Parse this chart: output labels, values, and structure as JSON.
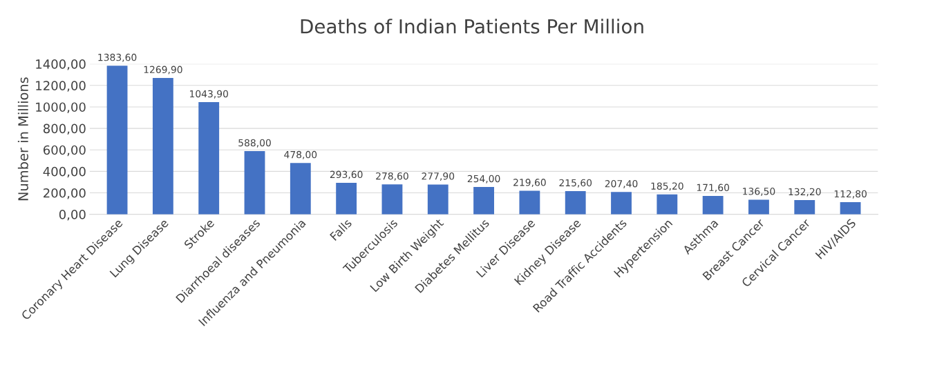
{
  "chart_data": {
    "type": "bar",
    "title": "Deaths of Indian Patients Per Million",
    "ylabel": "Number in Millions",
    "categories": [
      "Coronary Heart Disease",
      "Lung Disease",
      "Stroke",
      "Diarrhoeal diseases",
      "Influenza and Pneumonia",
      "Falls",
      "Tuberculosis",
      "Low Birth Weight",
      "Diabetes Mellitus",
      "Liver Disease",
      "Kidney Disease",
      "Road Traffic Accidents",
      "Hypertension",
      "Asthma",
      "Breast Cancer",
      "Cervical Cancer",
      "HIV/AIDS"
    ],
    "values": [
      1383.6,
      1269.9,
      1043.9,
      588.0,
      478.0,
      293.6,
      278.6,
      277.9,
      254.0,
      219.6,
      215.6,
      207.4,
      185.2,
      171.6,
      136.5,
      132.2,
      112.8
    ],
    "value_labels": [
      "1383,60",
      "1269,90",
      "1043,90",
      "588,00",
      "478,00",
      "293,60",
      "278,60",
      "277,90",
      "254,00",
      "219,60",
      "215,60",
      "207,40",
      "185,20",
      "171,60",
      "136,50",
      "132,20",
      "112,80"
    ],
    "color": "#4472c4",
    "ylim": [
      0,
      1400
    ],
    "yticks": [
      {
        "value": 0,
        "label": "0,00"
      },
      {
        "value": 200,
        "label": "200,00"
      },
      {
        "value": 400,
        "label": "400,00"
      },
      {
        "value": 600,
        "label": "600,00"
      },
      {
        "value": 800,
        "label": "800,00"
      },
      {
        "value": 1000,
        "label": "1000,00"
      },
      {
        "value": 1200,
        "label": "1200,00"
      },
      {
        "value": 1400,
        "label": "1400,00"
      }
    ],
    "grid": "y",
    "legend": false
  }
}
